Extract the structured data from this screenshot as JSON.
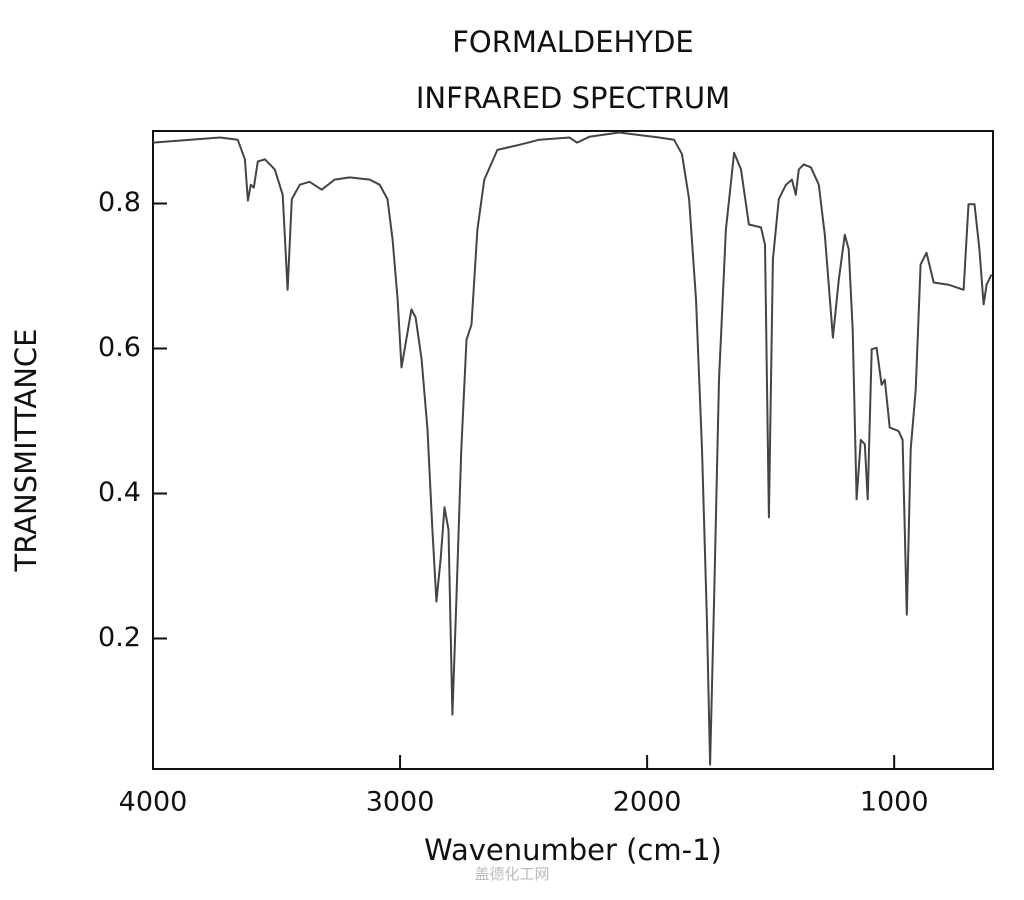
{
  "chart_data": {
    "type": "line",
    "title": "FORMALDEHYDE",
    "subtitle": "INFRARED SPECTRUM",
    "x_label": "Wavenumber (cm-1)",
    "y_label": "TRANSMITTANCE",
    "watermark": "盖德化工网",
    "xlim": [
      4000,
      600
    ],
    "ylim": [
      0.02,
      0.9
    ],
    "xticks": [
      4000,
      3000,
      2000,
      1000
    ],
    "yticks": [
      0.2,
      0.4,
      0.6,
      0.8
    ],
    "series": [
      {
        "color": "#444444",
        "x": [
          4000,
          3729,
          3657,
          3628,
          3616,
          3604,
          3592,
          3576,
          3547,
          3507,
          3475,
          3455,
          3438,
          3406,
          3366,
          3317,
          3265,
          3204,
          3123,
          3083,
          3051,
          3030,
          3010,
          2994,
          2978,
          2954,
          2937,
          2913,
          2889,
          2869,
          2853,
          2836,
          2820,
          2804,
          2788,
          2772,
          2752,
          2731,
          2711,
          2687,
          2659,
          2606,
          2517,
          2436,
          2315,
          2283,
          2234,
          2113,
          1952,
          1891,
          1859,
          1830,
          1802,
          1778,
          1758,
          1745,
          1729,
          1709,
          1681,
          1648,
          1620,
          1588,
          1539,
          1523,
          1507,
          1491,
          1467,
          1438,
          1414,
          1398,
          1386,
          1366,
          1337,
          1305,
          1281,
          1248,
          1224,
          1200,
          1184,
          1168,
          1152,
          1135,
          1119,
          1107,
          1091,
          1071,
          1051,
          1038,
          1018,
          982,
          966,
          949,
          933,
          913,
          893,
          869,
          840,
          780,
          719,
          699,
          675,
          655,
          638,
          626,
          606
        ],
        "values": [
          0.884,
          0.891,
          0.888,
          0.861,
          0.804,
          0.826,
          0.822,
          0.858,
          0.861,
          0.847,
          0.812,
          0.681,
          0.806,
          0.826,
          0.83,
          0.819,
          0.833,
          0.836,
          0.833,
          0.826,
          0.806,
          0.75,
          0.668,
          0.574,
          0.606,
          0.654,
          0.643,
          0.585,
          0.488,
          0.35,
          0.251,
          0.309,
          0.381,
          0.35,
          0.095,
          0.254,
          0.461,
          0.612,
          0.633,
          0.764,
          0.833,
          0.874,
          0.881,
          0.888,
          0.891,
          0.884,
          0.892,
          0.898,
          0.891,
          0.888,
          0.868,
          0.806,
          0.668,
          0.461,
          0.226,
          0.026,
          0.254,
          0.557,
          0.764,
          0.87,
          0.847,
          0.771,
          0.767,
          0.743,
          0.367,
          0.723,
          0.806,
          0.826,
          0.833,
          0.812,
          0.847,
          0.854,
          0.85,
          0.826,
          0.757,
          0.615,
          0.695,
          0.757,
          0.737,
          0.626,
          0.392,
          0.474,
          0.468,
          0.392,
          0.599,
          0.601,
          0.55,
          0.557,
          0.491,
          0.486,
          0.474,
          0.233,
          0.461,
          0.543,
          0.716,
          0.732,
          0.691,
          0.688,
          0.681,
          0.799,
          0.799,
          0.737,
          0.661,
          0.688,
          0.702
        ]
      }
    ]
  }
}
